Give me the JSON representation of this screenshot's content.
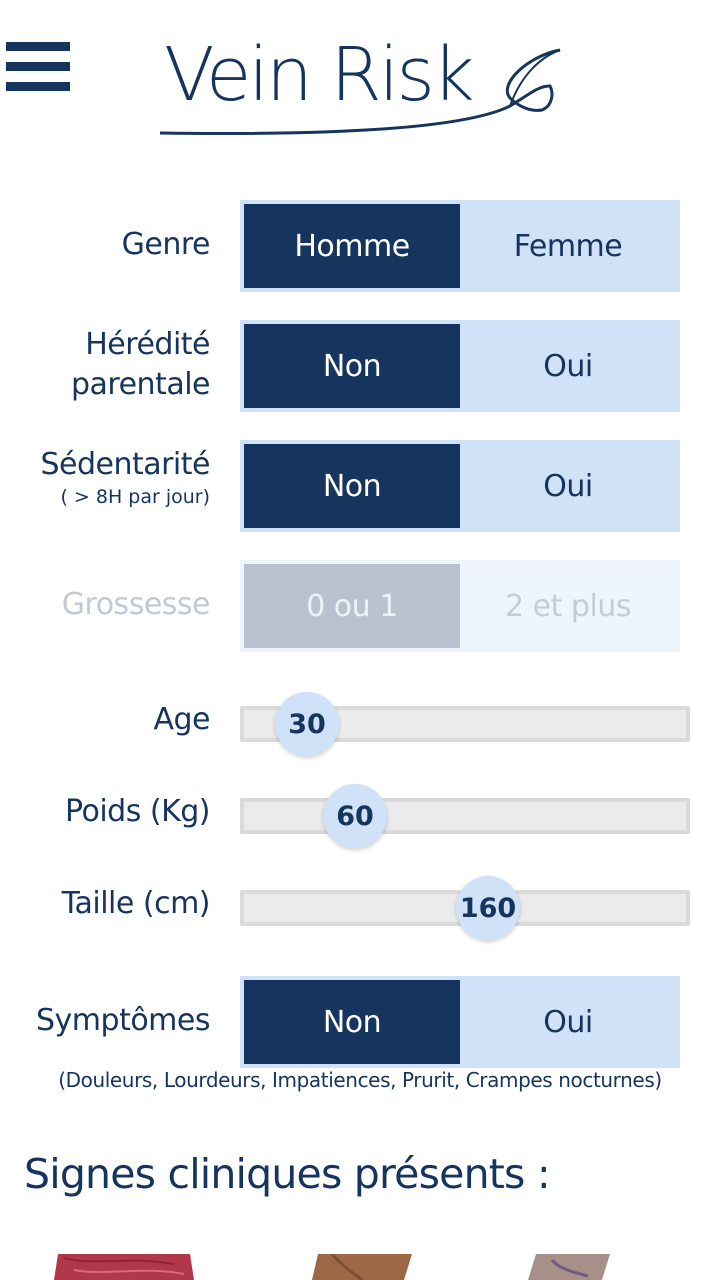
{
  "header": {
    "app_name": "Vein Risk"
  },
  "form": {
    "genre": {
      "label": "Genre",
      "options": [
        "Homme",
        "Femme"
      ],
      "selected": "Homme"
    },
    "heredite": {
      "label_line1": "Hérédité",
      "label_line2": "parentale",
      "options": [
        "Non",
        "Oui"
      ],
      "selected": "Non"
    },
    "sedentarite": {
      "label": "Sédentarité",
      "sublabel": "( > 8H par jour)",
      "options": [
        "Non",
        "Oui"
      ],
      "selected": "Non"
    },
    "grossesse": {
      "label": "Grossesse",
      "options": [
        "0 ou 1",
        "2 et plus"
      ],
      "selected": "0 ou 1",
      "disabled": true
    },
    "age": {
      "label": "Age",
      "value": "30"
    },
    "poids": {
      "label": "Poids (Kg)",
      "value": "60"
    },
    "taille": {
      "label": "Taille (cm)",
      "value": "160"
    },
    "symptomes": {
      "label": "Symptômes",
      "options": [
        "Non",
        "Oui"
      ],
      "selected": "Non",
      "note": "(Douleurs, Lourdeurs, Impatiences, Prurit, Crampes nocturnes)"
    }
  },
  "clinical": {
    "title": "Signes cliniques présents :"
  },
  "colors": {
    "navy": "#15345e",
    "light_blue": "#cfe2f7",
    "disabled_gray": "#b8c3cf"
  }
}
